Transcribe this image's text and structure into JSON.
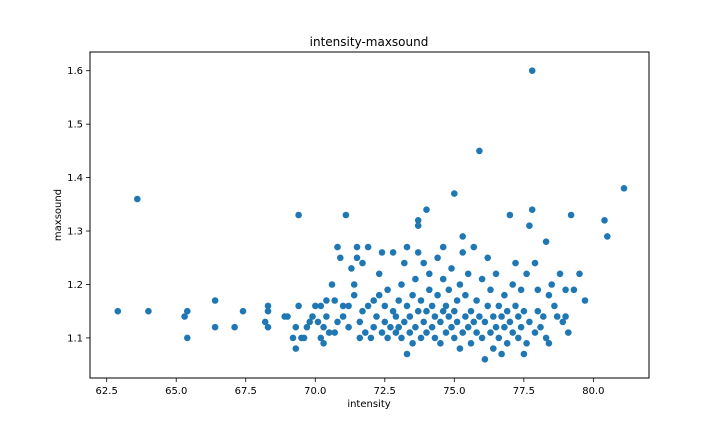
{
  "chart_data": {
    "type": "scatter",
    "title": "intensity-maxsound",
    "xlabel": "intensity",
    "ylabel": "maxsound",
    "xlim": [
      61.9,
      82.0
    ],
    "ylim": [
      1.025,
      1.635
    ],
    "xticks": [
      "62.5",
      "65.0",
      "67.5",
      "70.0",
      "72.5",
      "75.0",
      "77.5",
      "80.0"
    ],
    "yticks": [
      "1.1",
      "1.2",
      "1.3",
      "1.4",
      "1.5",
      "1.6"
    ],
    "grid": false,
    "color": "#1f77b4",
    "points": [
      [
        62.9,
        1.15
      ],
      [
        63.6,
        1.36
      ],
      [
        64.0,
        1.15
      ],
      [
        65.3,
        1.14
      ],
      [
        65.4,
        1.1
      ],
      [
        65.4,
        1.15
      ],
      [
        66.4,
        1.12
      ],
      [
        66.4,
        1.17
      ],
      [
        67.1,
        1.12
      ],
      [
        67.4,
        1.15
      ],
      [
        68.2,
        1.13
      ],
      [
        68.3,
        1.12
      ],
      [
        68.3,
        1.15
      ],
      [
        68.3,
        1.16
      ],
      [
        68.9,
        1.14
      ],
      [
        69.0,
        1.14
      ],
      [
        69.2,
        1.1
      ],
      [
        69.3,
        1.08
      ],
      [
        69.3,
        1.12
      ],
      [
        69.4,
        1.16
      ],
      [
        69.4,
        1.33
      ],
      [
        69.5,
        1.1
      ],
      [
        69.6,
        1.1
      ],
      [
        69.7,
        1.12
      ],
      [
        69.8,
        1.13
      ],
      [
        69.9,
        1.14
      ],
      [
        70.0,
        1.16
      ],
      [
        70.1,
        1.13
      ],
      [
        70.2,
        1.1
      ],
      [
        70.2,
        1.16
      ],
      [
        70.3,
        1.09
      ],
      [
        70.3,
        1.12
      ],
      [
        70.4,
        1.14
      ],
      [
        70.4,
        1.17
      ],
      [
        70.5,
        1.11
      ],
      [
        70.6,
        1.2
      ],
      [
        70.7,
        1.11
      ],
      [
        70.7,
        1.17
      ],
      [
        70.8,
        1.13
      ],
      [
        70.8,
        1.27
      ],
      [
        70.9,
        1.25
      ],
      [
        71.0,
        1.14
      ],
      [
        71.0,
        1.16
      ],
      [
        71.1,
        1.33
      ],
      [
        71.2,
        1.12
      ],
      [
        71.2,
        1.16
      ],
      [
        71.3,
        1.23
      ],
      [
        71.4,
        1.18
      ],
      [
        71.4,
        1.2
      ],
      [
        71.5,
        1.25
      ],
      [
        71.5,
        1.27
      ],
      [
        71.6,
        1.1
      ],
      [
        71.6,
        1.13
      ],
      [
        71.7,
        1.15
      ],
      [
        71.7,
        1.24
      ],
      [
        71.8,
        1.11
      ],
      [
        71.9,
        1.16
      ],
      [
        71.9,
        1.27
      ],
      [
        72.0,
        1.1
      ],
      [
        72.1,
        1.12
      ],
      [
        72.1,
        1.17
      ],
      [
        72.2,
        1.14
      ],
      [
        72.3,
        1.18
      ],
      [
        72.3,
        1.22
      ],
      [
        72.4,
        1.11
      ],
      [
        72.4,
        1.26
      ],
      [
        72.5,
        1.13
      ],
      [
        72.5,
        1.16
      ],
      [
        72.6,
        1.1
      ],
      [
        72.6,
        1.19
      ],
      [
        72.7,
        1.12
      ],
      [
        72.8,
        1.15
      ],
      [
        72.8,
        1.26
      ],
      [
        72.9,
        1.11
      ],
      [
        72.9,
        1.14
      ],
      [
        73.0,
        1.17
      ],
      [
        73.0,
        1.12
      ],
      [
        73.1,
        1.1
      ],
      [
        73.1,
        1.2
      ],
      [
        73.2,
        1.13
      ],
      [
        73.2,
        1.24
      ],
      [
        73.3,
        1.16
      ],
      [
        73.3,
        1.27
      ],
      [
        73.3,
        1.07
      ],
      [
        73.4,
        1.11
      ],
      [
        73.4,
        1.14
      ],
      [
        73.5,
        1.18
      ],
      [
        73.5,
        1.09
      ],
      [
        73.6,
        1.12
      ],
      [
        73.6,
        1.21
      ],
      [
        73.7,
        1.15
      ],
      [
        73.7,
        1.26
      ],
      [
        73.7,
        1.32
      ],
      [
        73.7,
        1.31
      ],
      [
        73.8,
        1.1
      ],
      [
        73.8,
        1.17
      ],
      [
        73.9,
        1.13
      ],
      [
        73.9,
        1.24
      ],
      [
        74.0,
        1.11
      ],
      [
        74.0,
        1.15
      ],
      [
        74.0,
        1.34
      ],
      [
        74.1,
        1.19
      ],
      [
        74.1,
        1.22
      ],
      [
        74.2,
        1.12
      ],
      [
        74.2,
        1.16
      ],
      [
        74.3,
        1.1
      ],
      [
        74.3,
        1.14
      ],
      [
        74.4,
        1.18
      ],
      [
        74.4,
        1.25
      ],
      [
        74.5,
        1.13
      ],
      [
        74.5,
        1.09
      ],
      [
        74.6,
        1.15
      ],
      [
        74.6,
        1.21
      ],
      [
        74.6,
        1.27
      ],
      [
        74.7,
        1.11
      ],
      [
        74.7,
        1.16
      ],
      [
        74.8,
        1.14
      ],
      [
        74.8,
        1.19
      ],
      [
        74.9,
        1.12
      ],
      [
        74.9,
        1.23
      ],
      [
        75.0,
        1.1
      ],
      [
        75.0,
        1.15
      ],
      [
        75.0,
        1.37
      ],
      [
        75.1,
        1.17
      ],
      [
        75.1,
        1.13
      ],
      [
        75.2,
        1.08
      ],
      [
        75.2,
        1.2
      ],
      [
        75.3,
        1.11
      ],
      [
        75.3,
        1.26
      ],
      [
        75.3,
        1.29
      ],
      [
        75.4,
        1.14
      ],
      [
        75.4,
        1.18
      ],
      [
        75.5,
        1.12
      ],
      [
        75.5,
        1.22
      ],
      [
        75.6,
        1.09
      ],
      [
        75.6,
        1.15
      ],
      [
        75.7,
        1.13
      ],
      [
        75.7,
        1.27
      ],
      [
        75.8,
        1.11
      ],
      [
        75.8,
        1.17
      ],
      [
        75.9,
        1.45
      ],
      [
        75.9,
        1.14
      ],
      [
        76.0,
        1.1
      ],
      [
        76.0,
        1.21
      ],
      [
        76.1,
        1.06
      ],
      [
        76.1,
        1.13
      ],
      [
        76.2,
        1.16
      ],
      [
        76.2,
        1.25
      ],
      [
        76.3,
        1.11
      ],
      [
        76.3,
        1.19
      ],
      [
        76.4,
        1.14
      ],
      [
        76.4,
        1.08
      ],
      [
        76.5,
        1.12
      ],
      [
        76.5,
        1.22
      ],
      [
        76.6,
        1.1
      ],
      [
        76.6,
        1.16
      ],
      [
        76.7,
        1.07
      ],
      [
        76.7,
        1.14
      ],
      [
        76.8,
        1.18
      ],
      [
        76.8,
        1.12
      ],
      [
        76.9,
        1.09
      ],
      [
        76.9,
        1.15
      ],
      [
        77.0,
        1.33
      ],
      [
        77.0,
        1.13
      ],
      [
        77.1,
        1.2
      ],
      [
        77.1,
        1.11
      ],
      [
        77.2,
        1.24
      ],
      [
        77.2,
        1.16
      ],
      [
        77.3,
        1.1
      ],
      [
        77.3,
        1.14
      ],
      [
        77.4,
        1.19
      ],
      [
        77.4,
        1.12
      ],
      [
        77.5,
        1.07
      ],
      [
        77.5,
        1.15
      ],
      [
        77.6,
        1.22
      ],
      [
        77.6,
        1.09
      ],
      [
        77.7,
        1.31
      ],
      [
        77.7,
        1.13
      ],
      [
        77.8,
        1.6
      ],
      [
        77.8,
        1.34
      ],
      [
        77.9,
        1.11
      ],
      [
        77.9,
        1.24
      ],
      [
        78.0,
        1.19
      ],
      [
        78.0,
        1.15
      ],
      [
        78.1,
        1.12
      ],
      [
        78.2,
        1.14
      ],
      [
        78.3,
        1.1
      ],
      [
        78.3,
        1.28
      ],
      [
        78.4,
        1.09
      ],
      [
        78.4,
        1.18
      ],
      [
        78.5,
        1.2
      ],
      [
        78.6,
        1.16
      ],
      [
        78.7,
        1.14
      ],
      [
        78.8,
        1.22
      ],
      [
        78.9,
        1.13
      ],
      [
        79.0,
        1.14
      ],
      [
        79.0,
        1.19
      ],
      [
        79.1,
        1.11
      ],
      [
        79.2,
        1.33
      ],
      [
        79.3,
        1.19
      ],
      [
        79.5,
        1.22
      ],
      [
        79.7,
        1.17
      ],
      [
        80.4,
        1.32
      ],
      [
        80.5,
        1.29
      ],
      [
        81.1,
        1.38
      ]
    ]
  }
}
